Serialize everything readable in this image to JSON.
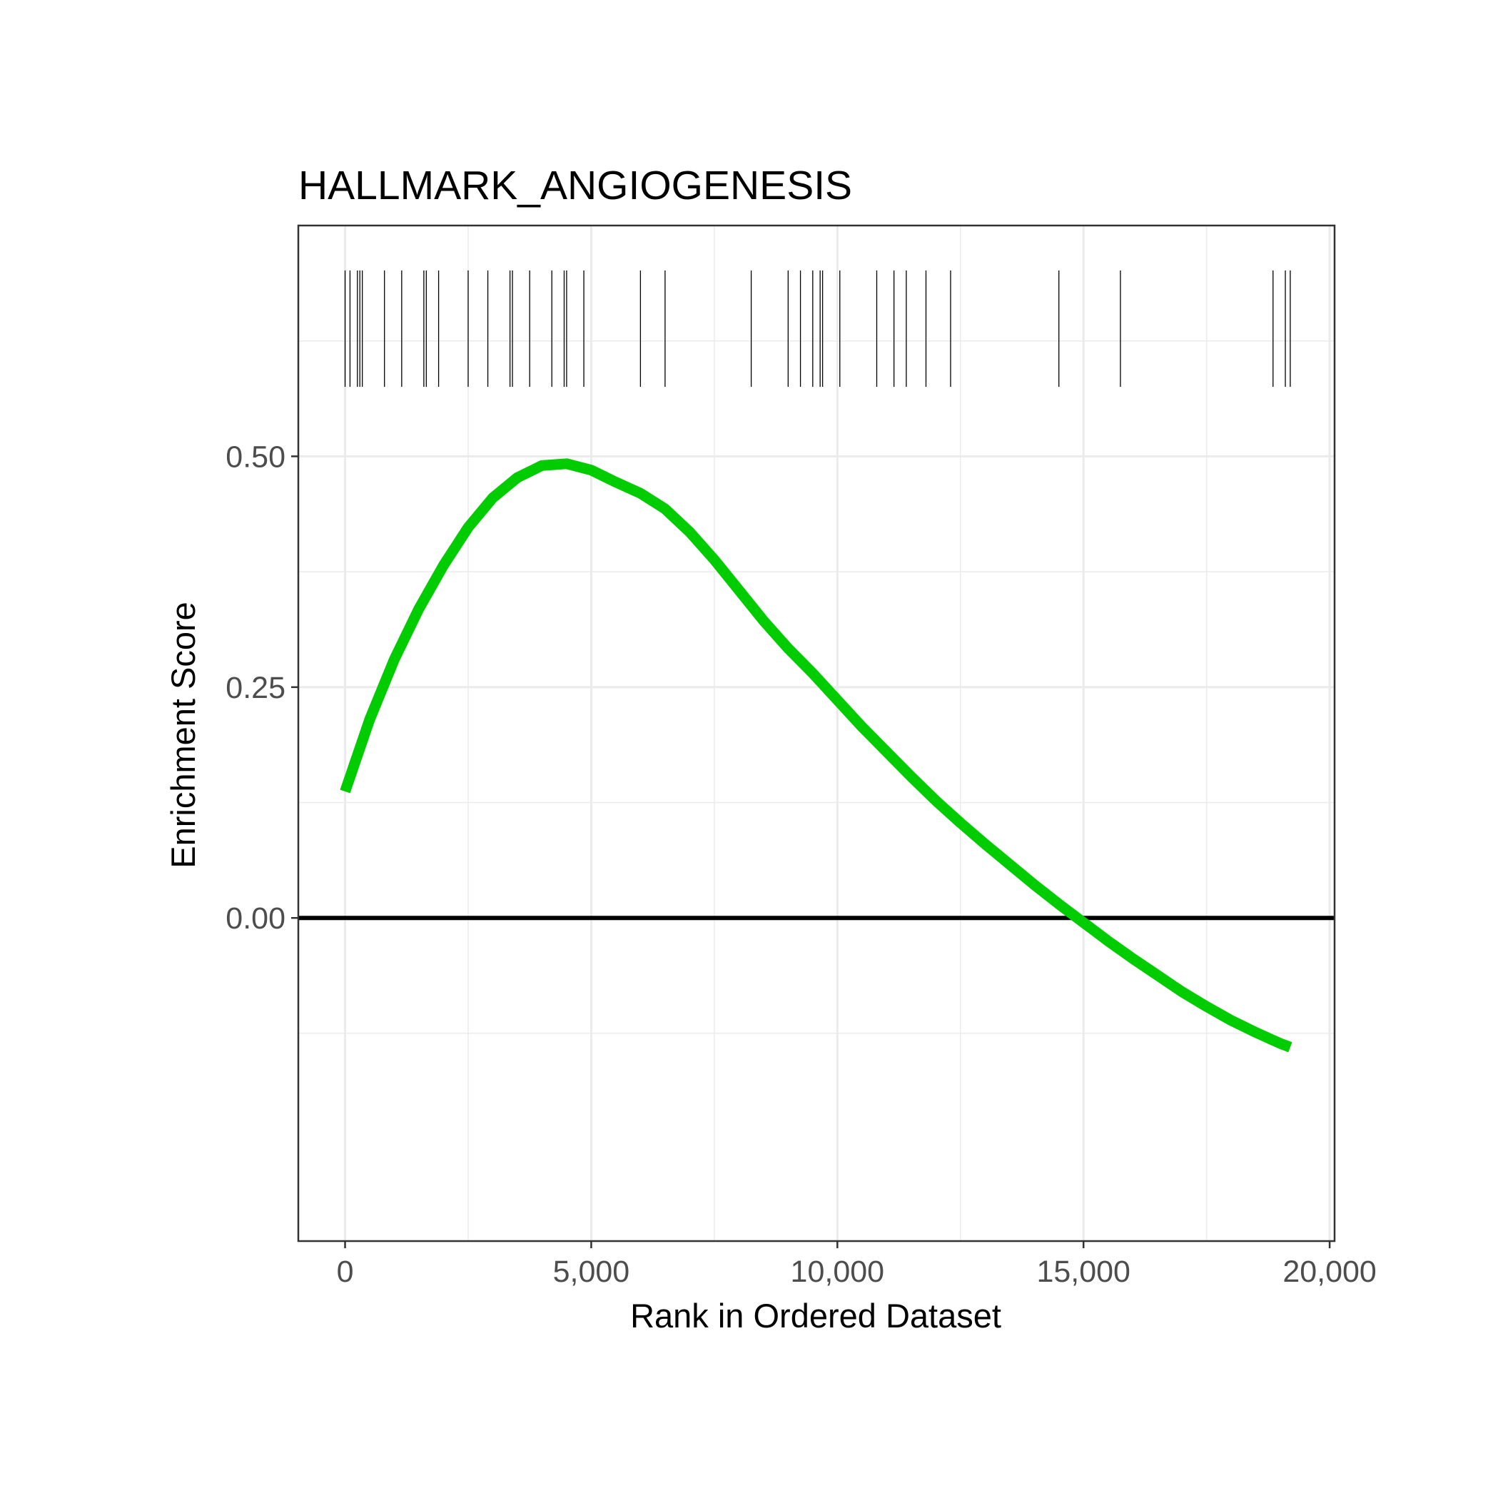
{
  "chart_data": {
    "type": "line",
    "title": "HALLMARK_ANGIOGENESIS",
    "xlabel": "Rank in Ordered Dataset",
    "ylabel": "Enrichment Score",
    "xlim": [
      -950,
      20100
    ],
    "ylim": [
      -0.35,
      0.75
    ],
    "x_ticks": [
      0,
      5000,
      10000,
      15000,
      20000
    ],
    "x_tick_labels": [
      "0",
      "5,000",
      "10,000",
      "15,000",
      "20,000"
    ],
    "x_minor_ticks": [
      2500,
      7500,
      12500,
      17500
    ],
    "y_ticks": [
      0.0,
      0.25,
      0.5
    ],
    "y_tick_labels": [
      "0.00",
      "0.25",
      "0.50"
    ],
    "y_minor_ticks": [
      -0.125,
      0.125,
      0.375,
      0.625
    ],
    "grid": true,
    "zero_line": 0.0,
    "series": [
      {
        "name": "Enrichment Score",
        "color": "#00cc00",
        "x": [
          0,
          500,
          1000,
          1500,
          2000,
          2500,
          3000,
          3500,
          4000,
          4500,
          5000,
          5500,
          6000,
          6500,
          7000,
          7500,
          8000,
          8500,
          9000,
          9500,
          10000,
          10500,
          11000,
          11500,
          12000,
          12500,
          13000,
          13500,
          14000,
          14500,
          15000,
          15500,
          16000,
          16500,
          17000,
          17500,
          18000,
          18500,
          19000,
          19200
        ],
        "values": [
          0.137,
          0.215,
          0.28,
          0.335,
          0.382,
          0.423,
          0.455,
          0.477,
          0.49,
          0.492,
          0.485,
          0.472,
          0.46,
          0.443,
          0.418,
          0.388,
          0.355,
          0.322,
          0.292,
          0.265,
          0.236,
          0.207,
          0.18,
          0.153,
          0.127,
          0.103,
          0.08,
          0.058,
          0.036,
          0.015,
          -0.005,
          -0.025,
          -0.044,
          -0.062,
          -0.08,
          -0.096,
          -0.111,
          -0.124,
          -0.136,
          -0.14
        ]
      }
    ],
    "hit_ranks": [
      0,
      100,
      250,
      300,
      350,
      800,
      1150,
      1600,
      1650,
      1900,
      2500,
      2900,
      3350,
      3400,
      3750,
      4200,
      4450,
      4500,
      4850,
      6000,
      6500,
      8250,
      9000,
      9250,
      9500,
      9650,
      9700,
      10050,
      10800,
      11150,
      11400,
      11800,
      12300,
      14500,
      15750,
      18850,
      19100,
      19200
    ]
  },
  "colors": {
    "curve": "#00cc00",
    "hits": "#000000",
    "zero_line": "#000000",
    "grid": "#ebebeb",
    "panel_border": "#333333"
  }
}
